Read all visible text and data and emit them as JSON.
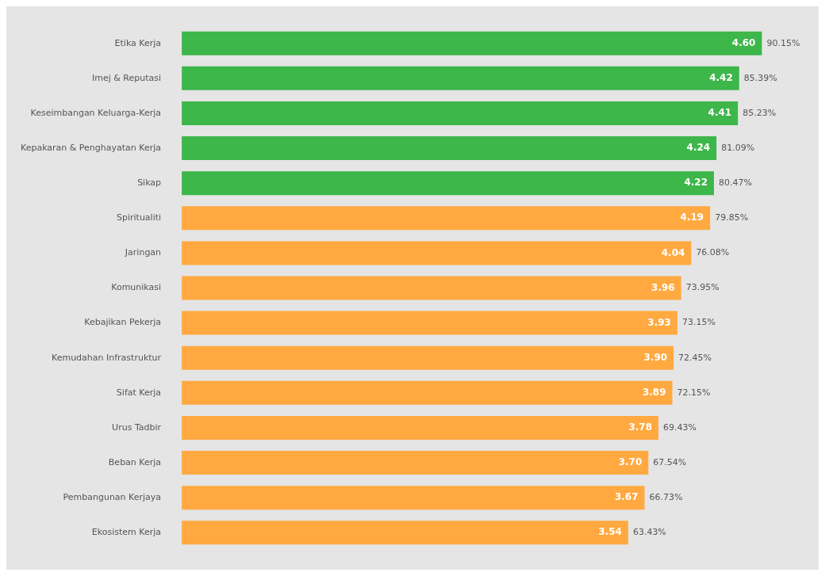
{
  "chart_data": {
    "type": "bar",
    "orientation": "horizontal",
    "categories": [
      "Etika Kerja",
      "Imej & Reputasi",
      "Keseimbangan Keluarga-Kerja",
      "Kepakaran & Penghayatan Kerja",
      "Sikap",
      "Spiritualiti",
      "Jaringan",
      "Komunikasi",
      "Kebajikan Pekerja",
      "Kemudahan Infrastruktur",
      "Sifat Kerja",
      "Urus Tadbir",
      "Beban Kerja",
      "Pembangunan Kerjaya",
      "Ekosistem Kerja"
    ],
    "values": [
      4.6,
      4.42,
      4.41,
      4.24,
      4.22,
      4.19,
      4.04,
      3.96,
      3.93,
      3.9,
      3.89,
      3.78,
      3.7,
      3.67,
      3.54
    ],
    "value_labels": [
      "4.60",
      "4.42",
      "4.41",
      "4.24",
      "4.22",
      "4.19",
      "4.04",
      "3.96",
      "3.93",
      "3.90",
      "3.89",
      "3.78",
      "3.70",
      "3.67",
      "3.54"
    ],
    "colors": [
      "#3db64a",
      "#3db64a",
      "#3db64a",
      "#3db64a",
      "#3db64a",
      "#ffa940",
      "#ffa940",
      "#ffa940",
      "#ffa940",
      "#ffa940",
      "#ffa940",
      "#ffa940",
      "#ffa940",
      "#ffa940",
      "#ffa940"
    ],
    "legend": false,
    "tick_labels": "y",
    "annotations": [
      {
        "text": "90.15%",
        "x": 4.6,
        "y": "Etika Kerja"
      },
      {
        "text": "85.39%",
        "x": 4.42,
        "y": "Imej & Reputasi"
      },
      {
        "text": "85.23%",
        "x": 4.41,
        "y": "Keseimbangan Keluarga-Kerja"
      },
      {
        "text": "81.09%",
        "x": 4.24,
        "y": "Kepakaran & Penghayatan Kerja"
      },
      {
        "text": "80.47%",
        "x": 4.22,
        "y": "Sikap"
      },
      {
        "text": "79.85%",
        "x": 4.19,
        "y": "Spiritualiti"
      },
      {
        "text": "76.08%",
        "x": 4.04,
        "y": "Jaringan"
      },
      {
        "text": "73.95%",
        "x": 3.96,
        "y": "Komunikasi"
      },
      {
        "text": "73.15%",
        "x": 3.93,
        "y": "Kebajikan Pekerja"
      },
      {
        "text": "72.45%",
        "x": 3.9,
        "y": "Kemudahan Infrastruktur"
      },
      {
        "text": "72.15%",
        "x": 3.89,
        "y": "Sifat Kerja"
      },
      {
        "text": "69.43%",
        "x": 3.78,
        "y": "Urus Tadbir"
      },
      {
        "text": "67.54%",
        "x": 3.7,
        "y": "Beban Kerja"
      },
      {
        "text": "66.73%",
        "x": 3.67,
        "y": "Pembangunan Kerjaya"
      },
      {
        "text": "63.43%",
        "x": 3.54,
        "y": "Ekosistem Kerja"
      }
    ]
  }
}
